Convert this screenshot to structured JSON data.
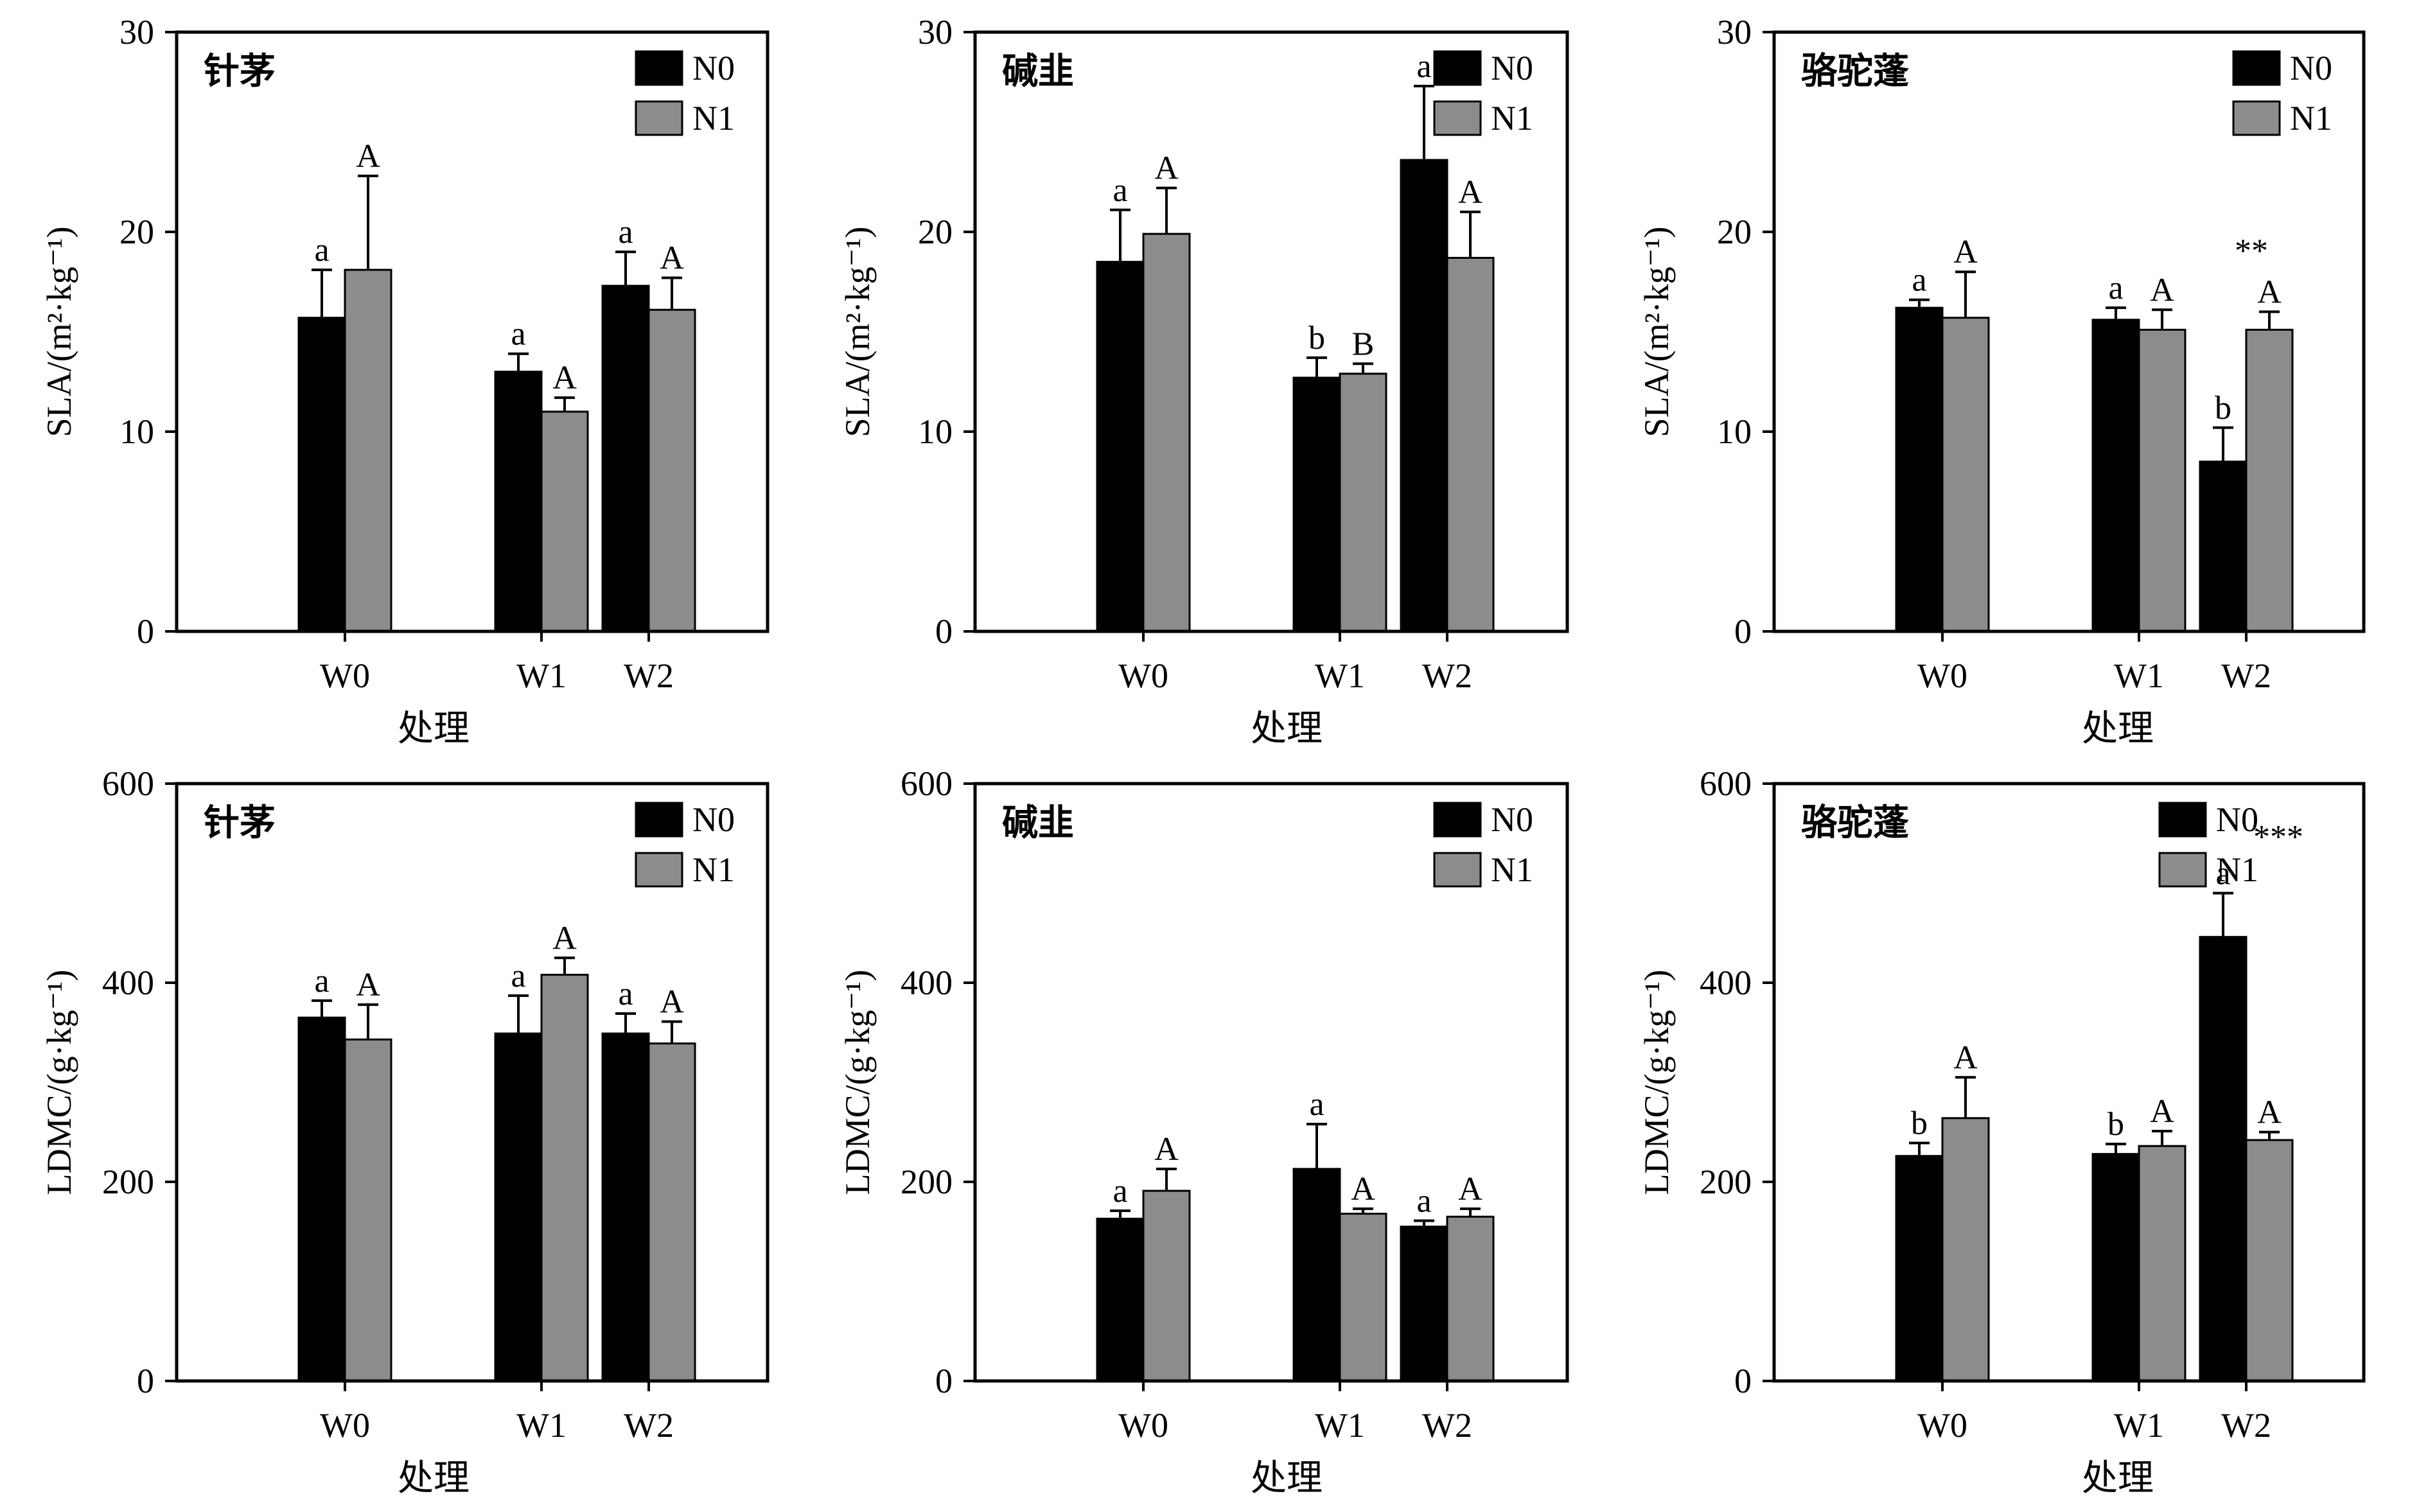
{
  "colors": {
    "N0": "#000000",
    "N1": "#8c8c8c",
    "frame": "#000000"
  },
  "chart_data": [
    {
      "type": "bar",
      "panel_label": "针茅",
      "ylabel": "SLA/(m²·kg⁻¹)",
      "xlabel": "处理",
      "categories": [
        "W0",
        "W1",
        "W2"
      ],
      "ylim": [
        0,
        30
      ],
      "yticks": [
        "0",
        "10",
        "20",
        "30"
      ],
      "legend_position": "top-right",
      "series": [
        {
          "name": "N0",
          "values": [
            15.7,
            13.0,
            17.3
          ],
          "errors": [
            2.4,
            0.9,
            1.7
          ],
          "letters": [
            "a",
            "a",
            "a"
          ]
        },
        {
          "name": "N1",
          "values": [
            18.1,
            11.0,
            16.1
          ],
          "errors": [
            4.7,
            0.7,
            1.6
          ],
          "letters": [
            "A",
            "A",
            "A"
          ]
        }
      ],
      "significance": [
        "",
        "",
        ""
      ]
    },
    {
      "type": "bar",
      "panel_label": "碱韭",
      "ylabel": "SLA/(m²·kg⁻¹)",
      "xlabel": "处理",
      "categories": [
        "W0",
        "W1",
        "W2"
      ],
      "ylim": [
        0,
        30
      ],
      "yticks": [
        "0",
        "10",
        "20",
        "30"
      ],
      "legend_position": "top-right",
      "series": [
        {
          "name": "N0",
          "values": [
            18.5,
            12.7,
            23.6
          ],
          "errors": [
            2.6,
            1.0,
            3.7
          ],
          "letters": [
            "a",
            "b",
            "a"
          ]
        },
        {
          "name": "N1",
          "values": [
            19.9,
            12.9,
            18.7
          ],
          "errors": [
            2.3,
            0.5,
            2.3
          ],
          "letters": [
            "A",
            "B",
            "A"
          ]
        }
      ],
      "significance": [
        "",
        "",
        ""
      ]
    },
    {
      "type": "bar",
      "panel_label": "骆驼蓬",
      "ylabel": "SLA/(m²·kg⁻¹)",
      "xlabel": "处理",
      "categories": [
        "W0",
        "W1",
        "W2"
      ],
      "ylim": [
        0,
        30
      ],
      "yticks": [
        "0",
        "10",
        "20",
        "30"
      ],
      "legend_position": "top-right",
      "series": [
        {
          "name": "N0",
          "values": [
            16.2,
            15.6,
            8.5
          ],
          "errors": [
            0.4,
            0.6,
            1.7
          ],
          "letters": [
            "a",
            "a",
            "b"
          ]
        },
        {
          "name": "N1",
          "values": [
            15.7,
            15.1,
            15.1
          ],
          "errors": [
            2.3,
            1.0,
            0.9
          ],
          "letters": [
            "A",
            "A",
            "A"
          ]
        }
      ],
      "significance": [
        "",
        "",
        "**"
      ]
    },
    {
      "type": "bar",
      "panel_label": "针茅",
      "ylabel": "LDMC/(g·kg⁻¹)",
      "xlabel": "处理",
      "categories": [
        "W0",
        "W1",
        "W2"
      ],
      "ylim": [
        0,
        600
      ],
      "yticks": [
        "0",
        "200",
        "400",
        "600"
      ],
      "legend_position": "top-right",
      "series": [
        {
          "name": "N0",
          "values": [
            365,
            349,
            349
          ],
          "errors": [
            17,
            38,
            20
          ],
          "letters": [
            "a",
            "a",
            "a"
          ]
        },
        {
          "name": "N1",
          "values": [
            343,
            408,
            339
          ],
          "errors": [
            35,
            17,
            22
          ],
          "letters": [
            "A",
            "A",
            "A"
          ]
        }
      ],
      "significance": [
        "",
        "",
        ""
      ]
    },
    {
      "type": "bar",
      "panel_label": "碱韭",
      "ylabel": "LDMC/(g·kg⁻¹)",
      "xlabel": "处理",
      "categories": [
        "W0",
        "W1",
        "W2"
      ],
      "ylim": [
        0,
        600
      ],
      "yticks": [
        "0",
        "200",
        "400",
        "600"
      ],
      "legend_position": "top-right",
      "series": [
        {
          "name": "N0",
          "values": [
            163,
            213,
            155
          ],
          "errors": [
            8,
            45,
            6
          ],
          "letters": [
            "a",
            "a",
            "a"
          ]
        },
        {
          "name": "N1",
          "values": [
            191,
            168,
            165
          ],
          "errors": [
            22,
            5,
            8
          ],
          "letters": [
            "A",
            "A",
            "A"
          ]
        }
      ],
      "significance": [
        "",
        "",
        ""
      ]
    },
    {
      "type": "bar",
      "panel_label": "骆驼蓬",
      "ylabel": "LDMC/(g·kg⁻¹)",
      "xlabel": "处理",
      "categories": [
        "W0",
        "W1",
        "W2"
      ],
      "ylim": [
        0,
        600
      ],
      "yticks": [
        "0",
        "200",
        "400",
        "600"
      ],
      "legend_position": "top-center",
      "series": [
        {
          "name": "N0",
          "values": [
            226,
            228,
            446
          ],
          "errors": [
            13,
            10,
            44
          ],
          "letters": [
            "b",
            "b",
            "a"
          ]
        },
        {
          "name": "N1",
          "values": [
            264,
            236,
            242
          ],
          "errors": [
            41,
            15,
            8
          ],
          "letters": [
            "A",
            "A",
            "A"
          ]
        }
      ],
      "significance": [
        "",
        "",
        "***"
      ]
    }
  ]
}
